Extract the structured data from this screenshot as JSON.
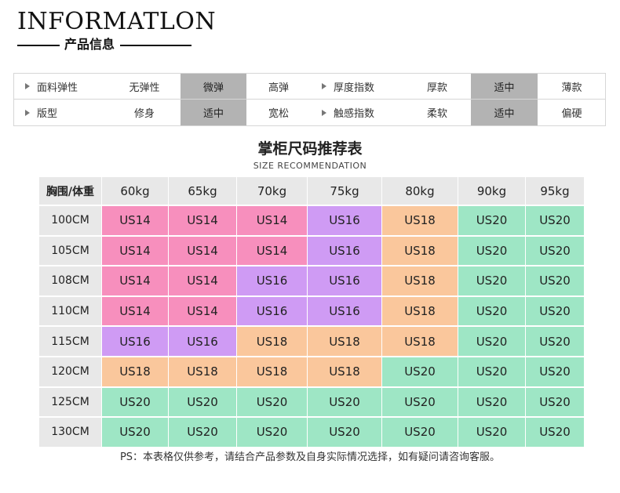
{
  "header": {
    "title": "INFORMATLON",
    "subtitle": "产品信息"
  },
  "info": {
    "rows": [
      {
        "left_label": "面料弹性",
        "left_options": [
          "无弹性",
          "微弹",
          "高弹"
        ],
        "left_selected": 1,
        "right_label": "厚度指数",
        "right_options": [
          "厚款",
          "适中",
          "薄款"
        ],
        "right_selected": 1
      },
      {
        "left_label": "版型",
        "left_options": [
          "修身",
          "适中",
          "宽松"
        ],
        "left_selected": 1,
        "right_label": "触感指数",
        "right_options": [
          "柔软",
          "适中",
          "偏硬"
        ],
        "right_selected": 1
      }
    ]
  },
  "size_section": {
    "title": "掌柜尺码推荐表",
    "subtitle": "SIZE RECOMMENDATION"
  },
  "size_table": {
    "corner": "胸围/体重",
    "weights": [
      "60kg",
      "65kg",
      "70kg",
      "75kg",
      "80kg",
      "90kg",
      "95kg"
    ],
    "rows": [
      {
        "chest": "100CM",
        "sizes": [
          "US14",
          "US14",
          "US14",
          "US16",
          "US18",
          "US20",
          "US20"
        ]
      },
      {
        "chest": "105CM",
        "sizes": [
          "US14",
          "US14",
          "US14",
          "US16",
          "US18",
          "US20",
          "US20"
        ]
      },
      {
        "chest": "108CM",
        "sizes": [
          "US14",
          "US14",
          "US16",
          "US16",
          "US18",
          "US20",
          "US20"
        ]
      },
      {
        "chest": "110CM",
        "sizes": [
          "US14",
          "US14",
          "US16",
          "US16",
          "US18",
          "US20",
          "US20"
        ]
      },
      {
        "chest": "115CM",
        "sizes": [
          "US16",
          "US16",
          "US18",
          "US18",
          "US18",
          "US20",
          "US20"
        ]
      },
      {
        "chest": "120CM",
        "sizes": [
          "US18",
          "US18",
          "US18",
          "US18",
          "US20",
          "US20",
          "US20"
        ]
      },
      {
        "chest": "125CM",
        "sizes": [
          "US20",
          "US20",
          "US20",
          "US20",
          "US20",
          "US20",
          "US20"
        ]
      },
      {
        "chest": "130CM",
        "sizes": [
          "US20",
          "US20",
          "US20",
          "US20",
          "US20",
          "US20",
          "US20"
        ]
      }
    ],
    "size_colors": {
      "US14": "#f78fbd",
      "US16": "#cf9bf4",
      "US18": "#fac79c",
      "US20": "#9ee6c5"
    },
    "header_bg": "#e8e8e8"
  },
  "footnote": "PS：本表格仅供参考，请结合产品参数及自身实际情况选择，如有疑问请咨询客服。"
}
